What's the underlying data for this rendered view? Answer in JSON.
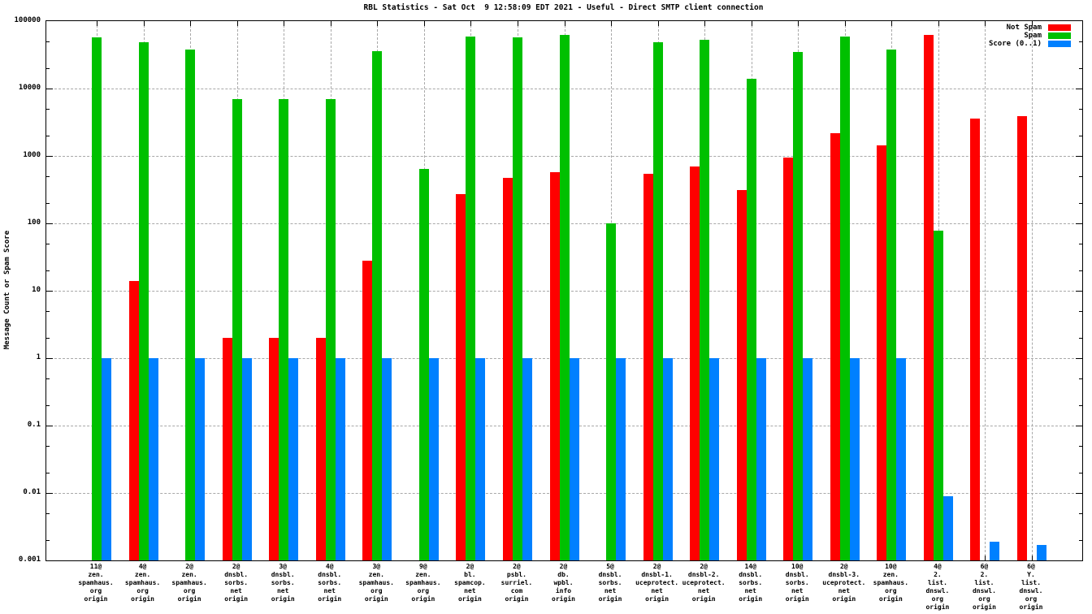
{
  "title": "RBL Statistics - Sat Oct  9 12:58:09 EDT 2021 - Useful - Direct SMTP client connection",
  "ylabel": "Message Count or Spam Score",
  "legend": [
    {
      "label": "Not Spam",
      "color": "#ff0000"
    },
    {
      "label": "Spam",
      "color": "#00c000"
    },
    {
      "label": "Score (0..1)",
      "color": "#0080ff"
    }
  ],
  "chart_data": {
    "type": "bar",
    "scale": "log",
    "title": "RBL Statistics - Sat Oct  9 12:58:09 EDT 2021 - Useful - Direct SMTP client connection",
    "xlabel": "",
    "ylabel": "Message Count or Spam Score",
    "ylim": [
      0.001,
      100000
    ],
    "y_ticks": [
      "100000",
      "10000",
      "1000",
      "100",
      "10",
      "1",
      "0.1",
      "0.01",
      "0.001"
    ],
    "grid": true,
    "legend_position": "top-right",
    "categories": [
      [
        "11@",
        "zen.",
        "spamhaus.",
        "org",
        "origin"
      ],
      [
        "4@",
        "zen.",
        "spamhaus.",
        "org",
        "origin"
      ],
      [
        "2@",
        "zen.",
        "spamhaus.",
        "org",
        "origin"
      ],
      [
        "2@",
        "dnsbl.",
        "sorbs.",
        "net",
        "origin"
      ],
      [
        "3@",
        "dnsbl.",
        "sorbs.",
        "net",
        "origin"
      ],
      [
        "4@",
        "dnsbl.",
        "sorbs.",
        "net",
        "origin"
      ],
      [
        "3@",
        "zen.",
        "spamhaus.",
        "org",
        "origin"
      ],
      [
        "9@",
        "zen.",
        "spamhaus.",
        "org",
        "origin"
      ],
      [
        "2@",
        "bl.",
        "spamcop.",
        "net",
        "origin"
      ],
      [
        "2@",
        "psbl.",
        "surriel.",
        "com",
        "origin"
      ],
      [
        "2@",
        "db.",
        "wpbl.",
        "info",
        "origin"
      ],
      [
        "5@",
        "dnsbl.",
        "sorbs.",
        "net",
        "origin"
      ],
      [
        "2@",
        "dnsbl-1.",
        "uceprotect.",
        "net",
        "origin"
      ],
      [
        "2@",
        "dnsbl-2.",
        "uceprotect.",
        "net",
        "origin"
      ],
      [
        "14@",
        "dnsbl.",
        "sorbs.",
        "net",
        "origin"
      ],
      [
        "10@",
        "dnsbl.",
        "sorbs.",
        "net",
        "origin"
      ],
      [
        "2@",
        "dnsbl-3.",
        "uceprotect.",
        "net",
        "origin"
      ],
      [
        "10@",
        "zen.",
        "spamhaus.",
        "org",
        "origin"
      ],
      [
        "4@",
        "2.",
        "list.",
        "dnswl.",
        "org",
        "origin"
      ],
      [
        "6@",
        "2.",
        "list.",
        "dnswl.",
        "org",
        "origin"
      ],
      [
        "6@",
        "Y.",
        "list.",
        "dnswl.",
        "org",
        "origin"
      ]
    ],
    "series": [
      {
        "name": "Not Spam",
        "color": "#ff0000",
        "values": [
          null,
          14,
          null,
          2,
          2,
          2,
          28,
          null,
          270,
          470,
          570,
          null,
          550,
          700,
          310,
          950,
          2200,
          1450,
          62000,
          3600,
          3900
        ]
      },
      {
        "name": "Spam",
        "color": "#00c000",
        "values": [
          57000,
          48000,
          38000,
          7000,
          7000,
          7000,
          36000,
          650,
          59000,
          57000,
          63000,
          100,
          49000,
          53000,
          14000,
          35000,
          59000,
          38000,
          78,
          null,
          null
        ]
      },
      {
        "name": "Score (0..1)",
        "color": "#0080ff",
        "values": [
          1,
          1,
          1,
          1,
          1,
          1,
          1,
          1,
          1,
          1,
          1,
          1,
          1,
          1,
          1,
          1,
          1,
          1,
          0.009,
          0.0019,
          0.0017
        ]
      }
    ]
  }
}
